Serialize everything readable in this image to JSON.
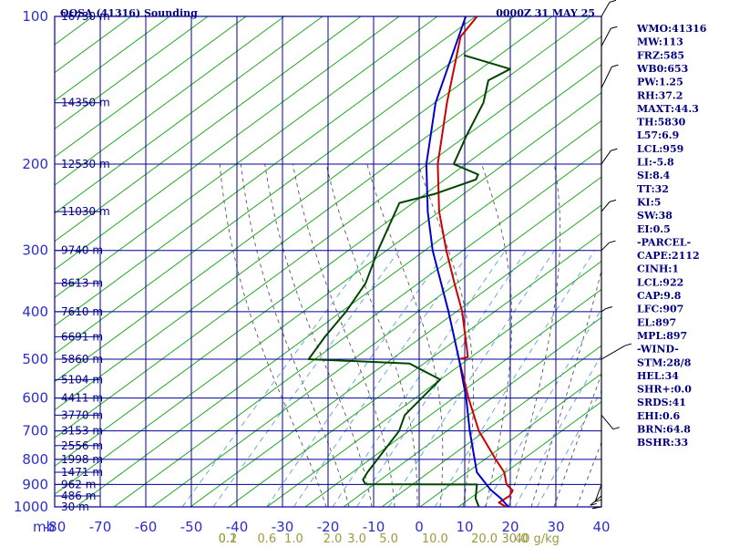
{
  "header": {
    "title": "OOSA (41316) Sounding",
    "time": "0000Z 31 MAY 25"
  },
  "axes": {
    "pressure_unit_label": "mb",
    "pressure_ticks": [
      "100",
      "200",
      "300",
      "400",
      "500",
      "600",
      "700",
      "800",
      "900",
      "1000"
    ],
    "temp_ticks": [
      "-80",
      "-70",
      "-60",
      "-50",
      "-40",
      "-30",
      "-20",
      "-10",
      "0",
      "10",
      "20",
      "30",
      "40"
    ],
    "mixing_ratio_labels": [
      "0.1",
      "0.2",
      "0.6",
      "1.0",
      "2.0",
      "3.0",
      "5.0",
      "10.0",
      "20.0",
      "30.0",
      "40 g/kg"
    ],
    "height_labels": [
      "16730 m",
      "14350 m",
      "12530 m",
      "11030 m",
      "9740 m",
      "8613 m",
      "7610 m",
      "6691 m",
      "5860 m",
      "5104 m",
      "4411 m",
      "3770 m",
      "3153 m",
      "2556 m",
      "1998 m",
      "1471 m",
      "962 m",
      "486 m",
      "30 m"
    ]
  },
  "indices": [
    "WMO:41316",
    "MW:113",
    "FRZ:585",
    "WB0:653",
    "PW:1.25",
    "RH:37.2",
    "MAXT:44.3",
    "TH:5830",
    "L57:6.9",
    "LCL:959",
    "LI:-5.8",
    "SI:8.4",
    "TT:32",
    "KI:5",
    "SW:38",
    "EI:0.5",
    "-PARCEL-",
    "CAPE:2112",
    "CINH:1",
    "LCL:922",
    "CAP:9.8",
    "LFC:907",
    "EL:897",
    "MPL:897",
    "-WIND-",
    "STM:28/8",
    "HEL:34",
    "SHR+:0.0",
    "SRDS:41",
    "EHI:0.6",
    "BRN:64.8",
    "BSHR:33"
  ],
  "colors": {
    "grid_blue": "#000099",
    "dry_adiabat_green": "#22aa22",
    "temperature_red": "#cc0000",
    "parcel_blue": "#0000cc",
    "dewpoint_green": "#004400",
    "mixing_ratio": "#999933",
    "moist_adiabat": "#555555",
    "axis_text": "#2d2dcc"
  },
  "chart_data": {
    "type": "line",
    "title": "OOSA (41316) Sounding",
    "xlabel": "",
    "ylabel": "mb",
    "x_scale": "skew-T (temperature °C, skewed)",
    "y_scale": "log",
    "ylim": [
      1000,
      100
    ],
    "xlim": [
      -80,
      40
    ],
    "grid": true,
    "series": [
      {
        "name": "",
        "role": "temperature",
        "color": "#cc0000",
        "points": [
          {
            "p": 1000,
            "t": 29.5
          },
          {
            "p": 980,
            "t": 27.0
          },
          {
            "p": 950,
            "t": 28.0
          },
          {
            "p": 925,
            "t": 27.5
          },
          {
            "p": 900,
            "t": 25.0
          },
          {
            "p": 850,
            "t": 22.0
          },
          {
            "p": 800,
            "t": 17.5
          },
          {
            "p": 700,
            "t": 8.0
          },
          {
            "p": 600,
            "t": -1.0
          },
          {
            "p": 500,
            "t": -11.0
          },
          {
            "p": 495,
            "t": -9.5
          },
          {
            "p": 480,
            "t": -11.0
          },
          {
            "p": 400,
            "t": -20.0
          },
          {
            "p": 350,
            "t": -27.5
          },
          {
            "p": 300,
            "t": -36.0
          },
          {
            "p": 250,
            "t": -45.5
          },
          {
            "p": 200,
            "t": -55.5
          },
          {
            "p": 150,
            "t": -66.0
          },
          {
            "p": 110,
            "t": -76.5
          },
          {
            "p": 100,
            "t": -77.0
          }
        ]
      },
      {
        "name": "",
        "role": "parcel",
        "color": "#0000cc",
        "points": [
          {
            "p": 1000,
            "t": 30.0
          },
          {
            "p": 960,
            "t": 26.5
          },
          {
            "p": 922,
            "t": 22.5
          },
          {
            "p": 850,
            "t": 16.0
          },
          {
            "p": 700,
            "t": 6.0
          },
          {
            "p": 600,
            "t": -1.5
          },
          {
            "p": 500,
            "t": -11.0
          },
          {
            "p": 400,
            "t": -23.0
          },
          {
            "p": 300,
            "t": -39.0
          },
          {
            "p": 250,
            "t": -48.0
          },
          {
            "p": 200,
            "t": -58.0
          },
          {
            "p": 150,
            "t": -68.5
          },
          {
            "p": 100,
            "t": -79.5
          }
        ]
      },
      {
        "name": "",
        "role": "dewpoint",
        "color": "#004400",
        "points": [
          {
            "p": 1000,
            "t": 23.5
          },
          {
            "p": 960,
            "t": 21.0
          },
          {
            "p": 900,
            "t": 18.5
          },
          {
            "p": 899,
            "t": -6.0
          },
          {
            "p": 880,
            "t": -7.5
          },
          {
            "p": 850,
            "t": -8.0
          },
          {
            "p": 700,
            "t": -9.5
          },
          {
            "p": 650,
            "t": -11.5
          },
          {
            "p": 550,
            "t": -11.0
          },
          {
            "p": 510,
            "t": -21.0
          },
          {
            "p": 500,
            "t": -44.0
          },
          {
            "p": 450,
            "t": -45.0
          },
          {
            "p": 400,
            "t": -45.5
          },
          {
            "p": 350,
            "t": -47.0
          },
          {
            "p": 300,
            "t": -51.0
          },
          {
            "p": 240,
            "t": -56.0
          },
          {
            "p": 230,
            "t": -50.0
          },
          {
            "p": 215,
            "t": -44.0
          },
          {
            "p": 210,
            "t": -44.5
          },
          {
            "p": 200,
            "t": -52.0
          },
          {
            "p": 175,
            "t": -55.0
          },
          {
            "p": 150,
            "t": -58.0
          },
          {
            "p": 135,
            "t": -61.5
          },
          {
            "p": 128,
            "t": -59.0
          },
          {
            "p": 120,
            "t": -72.0
          }
        ]
      }
    ]
  }
}
